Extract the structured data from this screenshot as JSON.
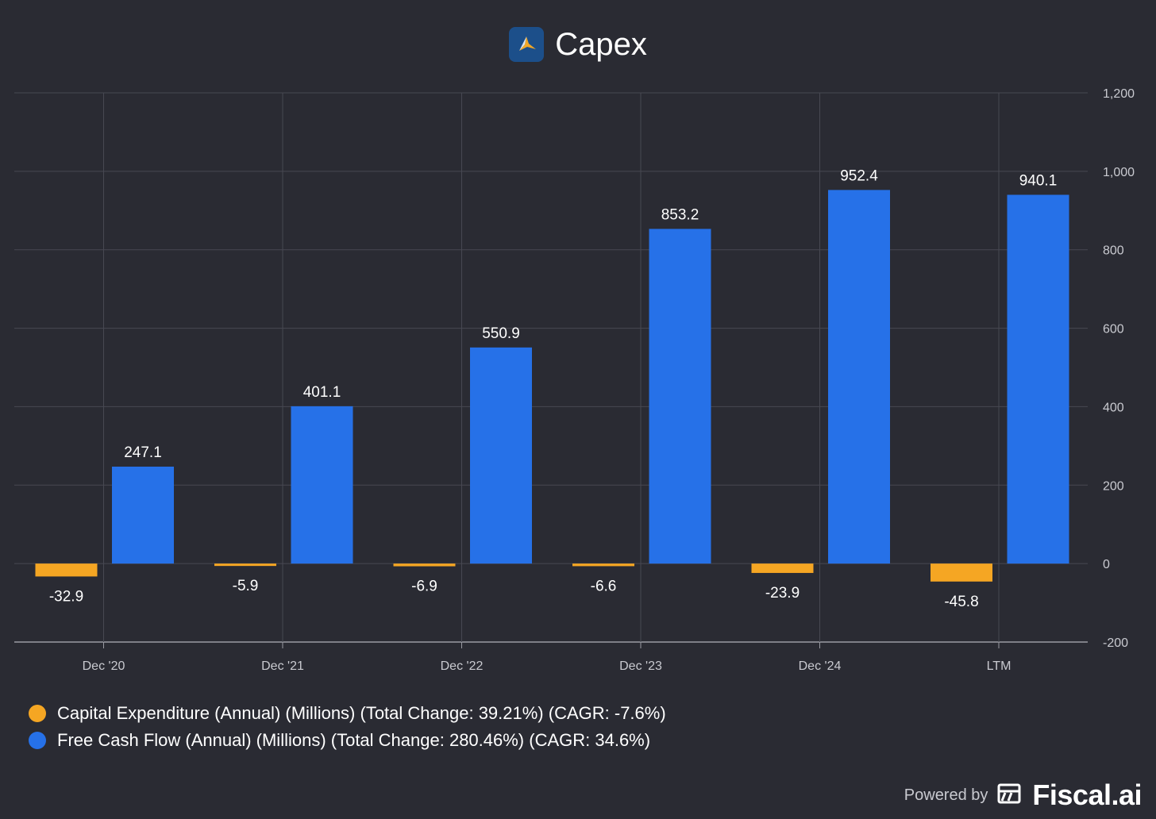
{
  "chart_data": {
    "type": "bar",
    "title": "Capex",
    "categories": [
      "Dec '20",
      "Dec '21",
      "Dec '22",
      "Dec '23",
      "Dec '24",
      "LTM"
    ],
    "series": [
      {
        "name": "Capital Expenditure (Annual) (Millions) (Total Change: 39.21%) (CAGR: -7.6%)",
        "color": "#f5a623",
        "values": [
          -32.9,
          -5.9,
          -6.9,
          -6.6,
          -23.9,
          -45.8
        ],
        "labels": [
          "-32.9",
          "-5.9",
          "-6.9",
          "-6.6",
          "-23.9",
          "-45.8"
        ]
      },
      {
        "name": "Free Cash Flow (Annual) (Millions) (Total Change: 280.46%) (CAGR: 34.6%)",
        "color": "#2671e8",
        "values": [
          247.1,
          401.1,
          550.9,
          853.2,
          952.4,
          940.1
        ],
        "labels": [
          "247.1",
          "401.1",
          "550.9",
          "853.2",
          "952.4",
          "940.1"
        ]
      }
    ],
    "ylim": [
      -200,
      1200
    ],
    "yticks": [
      1200,
      1000,
      800,
      600,
      400,
      200,
      0,
      -200
    ],
    "ytick_labels": [
      "1,200",
      "1,000",
      "800",
      "600",
      "400",
      "200",
      "0",
      "-200"
    ],
    "grid": true,
    "legend_position": "bottom-left",
    "xlabel": "",
    "ylabel": ""
  },
  "footer": {
    "powered_by": "Powered by",
    "brand": "Fiscal.ai"
  },
  "icons": {
    "title_logo": "company-logo-icon",
    "brand_logo": "fiscal-ai-logo-icon"
  }
}
